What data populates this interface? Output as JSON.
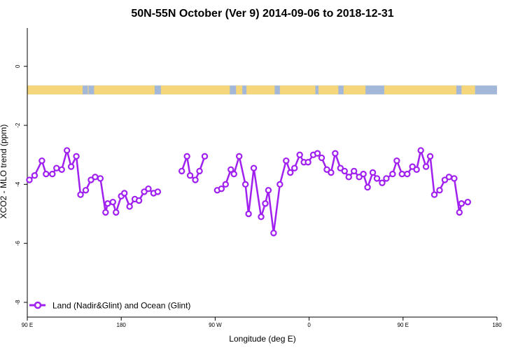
{
  "chart_data": {
    "type": "line",
    "title": "50N-55N October (Ver 9)   2014-09-06 to 2018-12-31",
    "xlabel": "Longitude (deg E)",
    "ylabel": "XCO2 - MLO trend (ppm)",
    "x_ticks": [
      {
        "value": 90,
        "label": "90 E"
      },
      {
        "value": 180,
        "label": "180"
      },
      {
        "value": 270,
        "label": "90 W"
      },
      {
        "value": 360,
        "label": "0"
      },
      {
        "value": 450,
        "label": "90 E"
      },
      {
        "value": 540,
        "label": "180"
      }
    ],
    "y_ticks": [
      {
        "value": 0,
        "label": "0"
      },
      {
        "value": -2,
        "label": "-2"
      },
      {
        "value": -4,
        "label": "-4"
      },
      {
        "value": -6,
        "label": "-6"
      },
      {
        "value": -8,
        "label": "-8"
      }
    ],
    "xlim": [
      90,
      540
    ],
    "ylim": [
      -8.5,
      1.3
    ],
    "grid": false,
    "legend_position": "bottom-left",
    "colors": {
      "series": "#a020f0",
      "land": "#f5d67a",
      "ocean": "#a3b8d9"
    },
    "land_ocean_strip": {
      "y_top": -0.65,
      "y_bottom": -0.95,
      "land_segments": [
        [
          90,
          143
        ],
        [
          148,
          143.5
        ],
        [
          154,
          212
        ],
        [
          218,
          284
        ],
        [
          290,
          296
        ],
        [
          300,
          327
        ],
        [
          332,
          366
        ],
        [
          369,
          388
        ],
        [
          393,
          414
        ],
        [
          432,
          501
        ],
        [
          506,
          519
        ]
      ]
    },
    "series": [
      {
        "name": "Land (Nadir&Glint) and Ocean (Glint)",
        "segments": [
          [
            [
              92,
              -3.85
            ],
            [
              97,
              -3.7
            ],
            [
              104,
              -3.2
            ],
            [
              108,
              -3.65
            ],
            [
              114,
              -3.65
            ],
            [
              118,
              -3.45
            ],
            [
              123,
              -3.5
            ],
            [
              128,
              -2.85
            ],
            [
              132,
              -3.4
            ],
            [
              137,
              -3.05
            ],
            [
              141,
              -4.35
            ],
            [
              146,
              -4.2
            ],
            [
              151,
              -3.85
            ],
            [
              155,
              -3.75
            ],
            [
              160,
              -3.8
            ],
            [
              165,
              -4.95
            ],
            [
              167,
              -4.65
            ],
            [
              172,
              -4.6
            ],
            [
              175,
              -4.95
            ],
            [
              180,
              -4.4
            ],
            [
              183,
              -4.3
            ],
            [
              188,
              -4.75
            ],
            [
              193,
              -4.5
            ],
            [
              197,
              -4.55
            ],
            [
              202,
              -4.25
            ],
            [
              206,
              -4.15
            ],
            [
              211,
              -4.3
            ],
            [
              215,
              -4.25
            ]
          ],
          [
            [
              238,
              -3.55
            ],
            [
              243,
              -3.05
            ],
            [
              246,
              -3.7
            ],
            [
              251,
              -3.85
            ],
            [
              255,
              -3.55
            ],
            [
              260,
              -3.05
            ]
          ],
          [
            [
              272,
              -4.2
            ],
            [
              276,
              -4.15
            ],
            [
              280,
              -4.0
            ],
            [
              285,
              -3.5
            ],
            [
              288,
              -3.65
            ],
            [
              293,
              -3.05
            ],
            [
              299,
              -4.0
            ],
            [
              302,
              -5.0
            ],
            [
              307,
              -3.45
            ],
            [
              314,
              -5.1
            ],
            [
              318,
              -4.65
            ],
            [
              321,
              -4.2
            ],
            [
              326,
              -5.65
            ],
            [
              332,
              -4.0
            ],
            [
              338,
              -3.2
            ],
            [
              342,
              -3.6
            ],
            [
              346,
              -3.45
            ],
            [
              351,
              -3.0
            ],
            [
              355,
              -3.25
            ],
            [
              359,
              -3.25
            ],
            [
              364,
              -3.0
            ],
            [
              368,
              -2.95
            ],
            [
              372,
              -3.1
            ],
            [
              377,
              -3.5
            ],
            [
              381,
              -3.6
            ],
            [
              385,
              -2.95
            ],
            [
              390,
              -3.45
            ],
            [
              394,
              -3.55
            ],
            [
              398,
              -3.75
            ],
            [
              403,
              -3.55
            ],
            [
              408,
              -3.75
            ],
            [
              412,
              -3.65
            ],
            [
              416,
              -4.1
            ],
            [
              421,
              -3.6
            ],
            [
              425,
              -3.8
            ],
            [
              430,
              -3.95
            ],
            [
              434,
              -3.8
            ],
            [
              440,
              -3.65
            ],
            [
              444,
              -3.2
            ],
            [
              449,
              -3.65
            ],
            [
              454,
              -3.65
            ],
            [
              459,
              -3.4
            ],
            [
              463,
              -3.5
            ],
            [
              467,
              -2.85
            ],
            [
              472,
              -3.4
            ],
            [
              476,
              -3.05
            ],
            [
              480,
              -4.35
            ],
            [
              485,
              -4.2
            ],
            [
              490,
              -3.85
            ],
            [
              494,
              -3.75
            ],
            [
              499,
              -3.8
            ],
            [
              504,
              -4.95
            ],
            [
              506,
              -4.65
            ],
            [
              512,
              -4.6
            ]
          ]
        ]
      }
    ]
  }
}
